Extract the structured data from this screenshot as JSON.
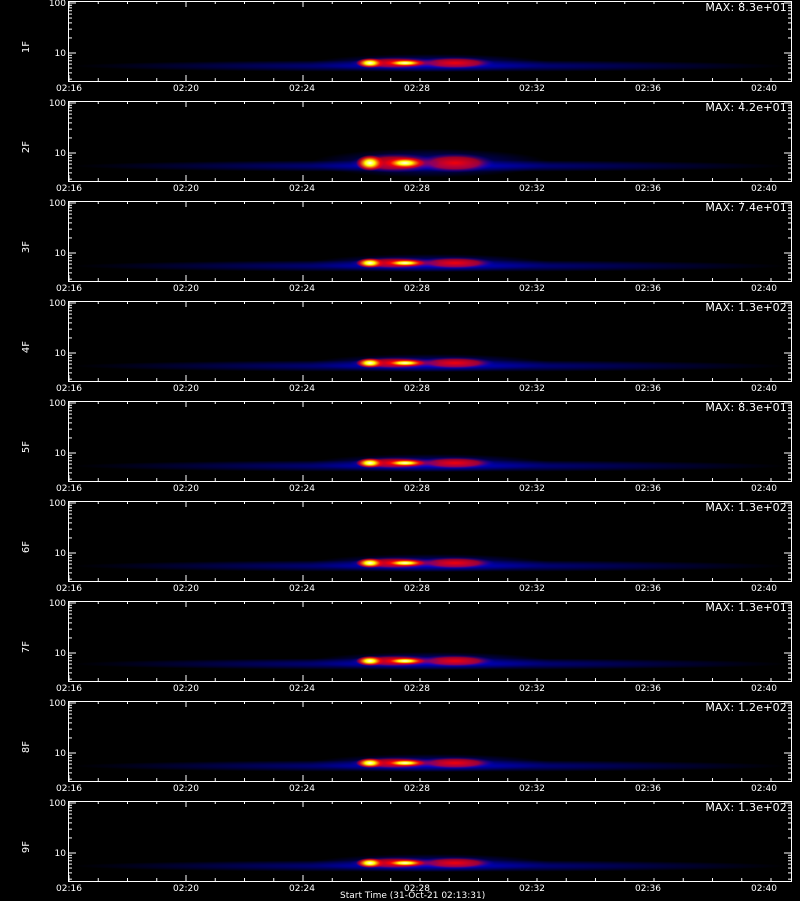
{
  "chart_data": {
    "type": "heatmap",
    "x_ticks": [
      "02:16",
      "02:20",
      "02:24",
      "02:28",
      "02:32",
      "02:36",
      "02:40"
    ],
    "y_ticks": [
      "100",
      "10"
    ],
    "y_scale": "log",
    "x_title": "Start Time (31-Oct-21 02:13:31)",
    "panels": [
      {
        "label": "1F",
        "max": "MAX: 8.3e+01"
      },
      {
        "label": "2F",
        "max": "MAX: 4.2e+01"
      },
      {
        "label": "3F",
        "max": "MAX: 7.4e+01"
      },
      {
        "label": "4F",
        "max": "MAX: 1.3e+02"
      },
      {
        "label": "5F",
        "max": "MAX: 8.3e+01"
      },
      {
        "label": "6F",
        "max": "MAX: 1.3e+02"
      },
      {
        "label": "7F",
        "max": "MAX: 1.3e+01"
      },
      {
        "label": "8F",
        "max": "MAX: 1.2e+02"
      },
      {
        "label": "9F",
        "max": "MAX: 1.3e+02"
      }
    ],
    "colormap": [
      "#000000",
      "#0000ff",
      "#ff0000",
      "#ffff00",
      "#ffffff"
    ]
  }
}
